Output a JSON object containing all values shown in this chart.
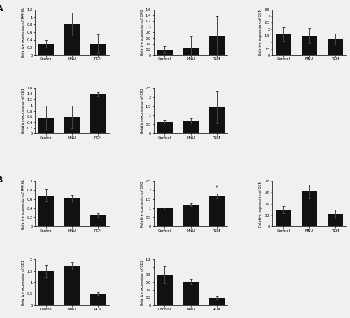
{
  "background_color": "#f0f0f0",
  "bar_color": "#111111",
  "error_color": "#444444",
  "categories": [
    "Control",
    "MNU",
    "RCM"
  ],
  "section_A": {
    "RANKL": {
      "values": [
        0.3,
        0.82,
        0.3
      ],
      "errors": [
        0.1,
        0.3,
        0.25
      ],
      "ylabel": "Relative expression of RANKL",
      "ylim": [
        0,
        1.2
      ],
      "yticks": [
        0,
        0.2,
        0.4,
        0.6,
        0.8,
        1.0,
        1.2
      ]
    },
    "OPG": {
      "values": [
        0.2,
        0.27,
        0.65
      ],
      "errors": [
        0.13,
        0.38,
        0.72
      ],
      "ylabel": "Relative expression of OPG",
      "ylim": [
        0,
        1.6
      ],
      "yticks": [
        0,
        0.2,
        0.4,
        0.6,
        0.8,
        1.0,
        1.2,
        1.4,
        1.6
      ]
    },
    "OCN": {
      "values": [
        1.6,
        1.5,
        1.25
      ],
      "errors": [
        0.55,
        0.58,
        0.42
      ],
      "ylabel": "Relative expression of OCN",
      "ylim": [
        0,
        3.5
      ],
      "yticks": [
        0,
        0.5,
        1.0,
        1.5,
        2.0,
        2.5,
        3.0,
        3.5
      ]
    },
    "CB1": {
      "values": [
        0.55,
        0.6,
        1.38
      ],
      "errors": [
        0.45,
        0.4,
        0.08
      ],
      "ylabel": "Relative expression of CB1",
      "ylim": [
        0,
        1.6
      ],
      "yticks": [
        0,
        0.2,
        0.4,
        0.6,
        0.8,
        1.0,
        1.2,
        1.4,
        1.6
      ]
    },
    "CB2": {
      "values": [
        0.65,
        0.72,
        1.48
      ],
      "errors": [
        0.1,
        0.15,
        0.88
      ],
      "ylabel": "Relative expression of CB2",
      "ylim": [
        0,
        2.5
      ],
      "yticks": [
        0,
        0.5,
        1.0,
        1.5,
        2.0,
        2.5
      ]
    }
  },
  "section_B": {
    "RANKL": {
      "values": [
        0.68,
        0.61,
        0.25
      ],
      "errors": [
        0.13,
        0.08,
        0.04
      ],
      "ylabel": "Relative expression of RANKL",
      "ylim": [
        0,
        1.0
      ],
      "yticks": [
        0,
        0.2,
        0.4,
        0.6,
        0.8,
        1.0
      ]
    },
    "OPG": {
      "values": [
        1.0,
        1.2,
        1.68
      ],
      "errors": [
        0.05,
        0.08,
        0.14
      ],
      "ylabel": "Relative expression of OPG",
      "ylim": [
        0,
        2.5
      ],
      "yticks": [
        0,
        0.5,
        1.0,
        1.5,
        2.0,
        2.5
      ],
      "star_bar": 2
    },
    "OCN": {
      "values": [
        0.3,
        0.62,
        0.22
      ],
      "errors": [
        0.06,
        0.12,
        0.08
      ],
      "ylabel": "Relative expression of OCN",
      "ylim": [
        0,
        0.8
      ],
      "yticks": [
        0,
        0.2,
        0.4,
        0.6,
        0.8
      ]
    },
    "CB1": {
      "values": [
        1.5,
        1.72,
        0.52
      ],
      "errors": [
        0.28,
        0.18,
        0.06
      ],
      "ylabel": "Relative expression of CB1",
      "ylim": [
        0,
        2.0
      ],
      "yticks": [
        0,
        0.5,
        1.0,
        1.5,
        2.0
      ]
    },
    "CB2": {
      "values": [
        0.8,
        0.62,
        0.2
      ],
      "errors": [
        0.22,
        0.07,
        0.04
      ],
      "ylabel": "Relative expression of CB2",
      "ylim": [
        0,
        1.2
      ],
      "yticks": [
        0,
        0.2,
        0.4,
        0.6,
        0.8,
        1.0,
        1.2
      ]
    }
  }
}
